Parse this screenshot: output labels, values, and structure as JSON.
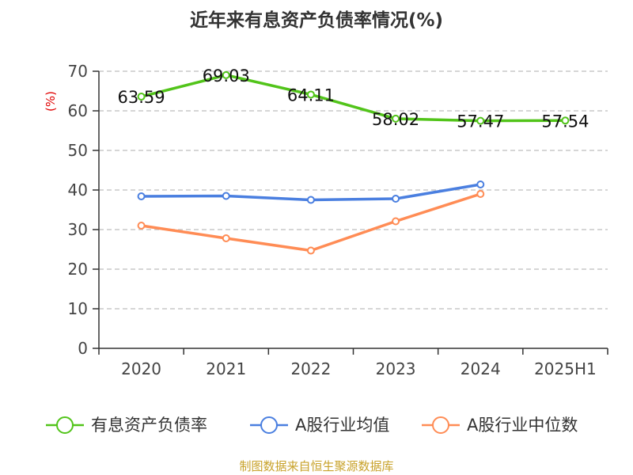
{
  "title": "近年来有息资产负债率情况(%)",
  "source": "制图数据来自恒生聚源数据库",
  "chart_data": {
    "type": "line",
    "title": "近年来有息资产负债率情况(%)",
    "ylabel": "(%)",
    "ylim": [
      0,
      70
    ],
    "yticks": [
      0,
      10,
      20,
      30,
      40,
      50,
      60,
      70
    ],
    "grid": true,
    "legend_position": "bottom",
    "categories": [
      "2020",
      "2021",
      "2022",
      "2023",
      "2024",
      "2025H1"
    ],
    "series": [
      {
        "name": "有息资产负债率",
        "color": "#52c41a",
        "values": [
          63.59,
          69.03,
          64.11,
          58.02,
          57.47,
          57.54
        ],
        "labels": [
          "63.59",
          "69.03",
          "64.11",
          "58.02",
          "57.47",
          "57.54"
        ]
      },
      {
        "name": "A股行业均值",
        "color": "#4a7fe0",
        "values": [
          38.4,
          38.5,
          37.5,
          37.8,
          41.4,
          null
        ]
      },
      {
        "name": "A股行业中位数",
        "color": "#ff8c55",
        "values": [
          31.0,
          27.8,
          24.7,
          32.1,
          39.0,
          null
        ]
      }
    ]
  }
}
